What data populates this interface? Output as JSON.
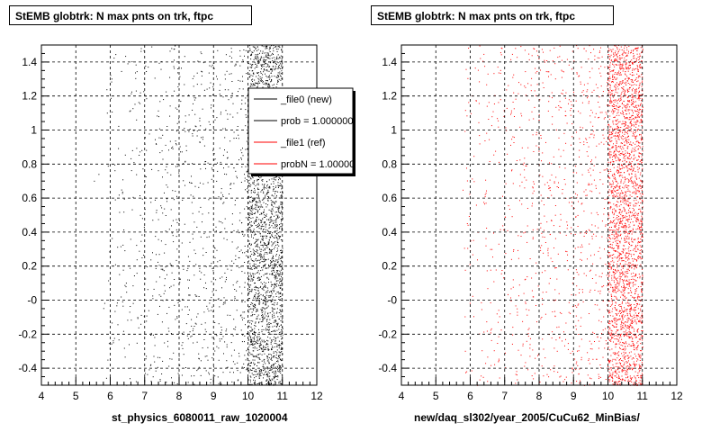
{
  "footer": "",
  "chart_data": [
    {
      "type": "scatter",
      "title": "StEMB globtrk: N max pnts on trk, ftpc",
      "xlabel": "st_physics_6080011_raw_1020004",
      "ylabel": "",
      "xlim": [
        4,
        12
      ],
      "ylim": [
        -0.5,
        1.5
      ],
      "x_ticks": [
        "4",
        "5",
        "6",
        "7",
        "8",
        "9",
        "10",
        "11",
        "12"
      ],
      "y_ticks": [
        "-0.4",
        "-0.2",
        "-0",
        "0.2",
        "0.4",
        "0.6",
        "0.8",
        "1",
        "1.2",
        "1.4"
      ],
      "grid": true,
      "point_color": "#000000",
      "highlight_band": [
        10,
        11
      ],
      "series": [
        {
          "name": "_file0 (new)",
          "color": "#000000"
        },
        {
          "name": "prob = 1.000000",
          "color": "#000000"
        },
        {
          "name": "_file1 (ref)",
          "color": "#ff0000"
        },
        {
          "name": "probN = 1.000000",
          "color": "#ff0000"
        }
      ],
      "legend_placement": "top-right"
    },
    {
      "type": "scatter",
      "title": "StEMB globtrk: N max pnts on trk, ftpc",
      "xlabel": "new/daq_sl302/year_2005/CuCu62_MinBias/",
      "ylabel": "",
      "xlim": [
        4,
        12
      ],
      "ylim": [
        -0.5,
        1.5
      ],
      "x_ticks": [
        "4",
        "5",
        "6",
        "7",
        "8",
        "9",
        "10",
        "11",
        "12"
      ],
      "y_ticks": [
        "-0.4",
        "-0.2",
        "-0",
        "0.2",
        "0.4",
        "0.6",
        "0.8",
        "1",
        "1.2",
        "1.4"
      ],
      "grid": true,
      "point_color": "#ff0000",
      "highlight_band": [
        10,
        11
      ]
    }
  ]
}
